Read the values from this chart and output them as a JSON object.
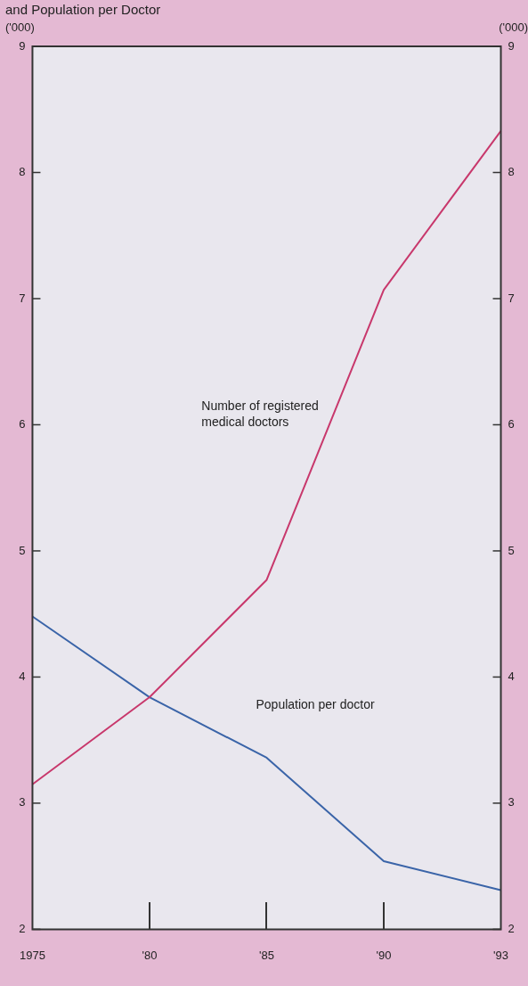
{
  "chart_data": {
    "type": "line",
    "title": "and Population per Doctor",
    "ylabel": "('000)",
    "y2label": "('000)",
    "categories": [
      "1975",
      "'80",
      "'85",
      "'90",
      "'93"
    ],
    "series": [
      {
        "name": "Number of registered medical doctors",
        "color": "#c8386c",
        "values": [
          3.15,
          3.84,
          4.77,
          7.07,
          8.33
        ]
      },
      {
        "name": "Population per doctor",
        "color": "#3a64a8",
        "values": [
          4.48,
          3.84,
          3.36,
          2.54,
          2.31
        ]
      }
    ],
    "ylim": [
      2,
      9
    ],
    "yticks": [
      2,
      3,
      4,
      5,
      6,
      7,
      8,
      9
    ],
    "y2lim": [
      2,
      9
    ],
    "y2ticks": [
      2,
      3,
      4,
      5,
      6,
      7,
      8,
      9
    ],
    "grid": false,
    "legend": false,
    "marker": "none",
    "line_style": "solid"
  }
}
